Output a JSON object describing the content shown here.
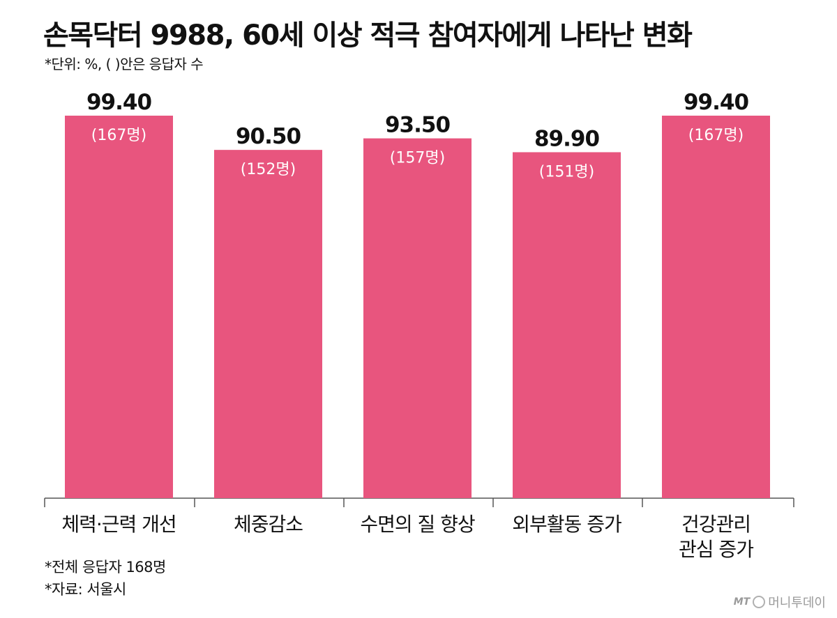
{
  "header": {
    "title": "손목닥터 9988, 60세 이상 적극 참여자에게 나타난 변화",
    "subtitle": "*단위: %, ( )안은 응답자 수"
  },
  "chart_data": {
    "type": "bar",
    "categories": [
      [
        "체력·근력 개선"
      ],
      [
        "체중감소"
      ],
      [
        "수면의 질 향상"
      ],
      [
        "외부활동 증가"
      ],
      [
        "건강관리",
        "관심 증가"
      ]
    ],
    "values": [
      99.4,
      90.5,
      93.5,
      89.9,
      99.4
    ],
    "value_labels": [
      "99.40",
      "90.50",
      "93.50",
      "89.90",
      "99.40"
    ],
    "counts": [
      "(167명)",
      "(152명)",
      "(157명)",
      "(151명)",
      "(167명)"
    ],
    "ylim": [
      0,
      100
    ],
    "grid": false,
    "bar_color": "#e8557e"
  },
  "footnotes": {
    "total": "*전체 응답자 168명",
    "source": "*자료: 서울시"
  },
  "credit": {
    "mark": "MT",
    "text": "머니투데이"
  }
}
